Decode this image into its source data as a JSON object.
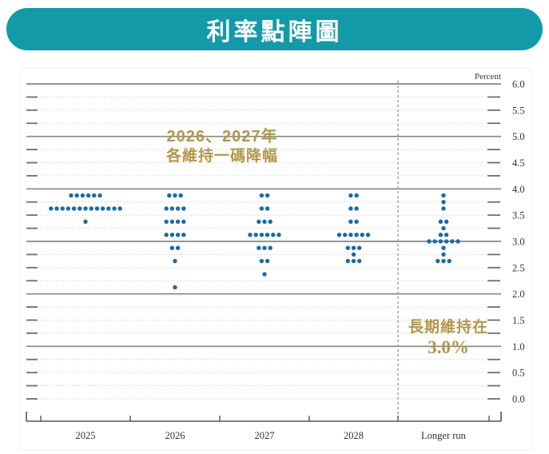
{
  "banner": {
    "title": "利率點陣圖"
  },
  "colors": {
    "banner_teal": "#129aa8",
    "dot_blue": "#1b6aa4",
    "annotation_gold": "#b2964a",
    "grid_solid": "#868686",
    "grid_dotted": "#c6c6c6",
    "grid_end_dash": "#6e6e6e",
    "axis": "#555555",
    "label_text": "#333333"
  },
  "chart_data": {
    "type": "scatter",
    "subtype": "fomc-dot-plot",
    "title": "利率點陣圖",
    "unit_label": "Percent",
    "categories": [
      "2025",
      "2026",
      "2027",
      "2028",
      "Longer run"
    ],
    "ylim": [
      0.0,
      6.0
    ],
    "y_major_grid_step": 1.0,
    "y_minor_grid_step": 0.25,
    "y_tick_labels": [
      "6.0",
      "5.5",
      "5.0",
      "4.5",
      "4.0",
      "3.5",
      "3.0",
      "2.5",
      "2.0",
      "1.5",
      "1.0",
      "0.5",
      "0.0"
    ],
    "grid": true,
    "legend": "none",
    "separator_before_category": "Longer run",
    "columns": [
      {
        "category": "2025",
        "dots": [
          {
            "rate": 3.875,
            "count": 6
          },
          {
            "rate": 3.625,
            "count": 13
          },
          {
            "rate": 3.375,
            "count": 1
          }
        ]
      },
      {
        "category": "2026",
        "dots": [
          {
            "rate": 3.875,
            "count": 3
          },
          {
            "rate": 3.625,
            "count": 4
          },
          {
            "rate": 3.375,
            "count": 4
          },
          {
            "rate": 3.125,
            "count": 4
          },
          {
            "rate": 2.875,
            "count": 2
          },
          {
            "rate": 2.625,
            "count": 1
          },
          {
            "rate": 2.125,
            "count": 1
          }
        ]
      },
      {
        "category": "2027",
        "dots": [
          {
            "rate": 3.875,
            "count": 2
          },
          {
            "rate": 3.625,
            "count": 2
          },
          {
            "rate": 3.375,
            "count": 3
          },
          {
            "rate": 3.125,
            "count": 6
          },
          {
            "rate": 2.875,
            "count": 3
          },
          {
            "rate": 2.625,
            "count": 2
          },
          {
            "rate": 2.375,
            "count": 1
          }
        ]
      },
      {
        "category": "2028",
        "dots": [
          {
            "rate": 3.875,
            "count": 2
          },
          {
            "rate": 3.625,
            "count": 2
          },
          {
            "rate": 3.375,
            "count": 2
          },
          {
            "rate": 3.125,
            "count": 6
          },
          {
            "rate": 2.875,
            "count": 3
          },
          {
            "rate": 2.75,
            "count": 1
          },
          {
            "rate": 2.625,
            "count": 3
          }
        ]
      },
      {
        "category": "Longer run",
        "dots": [
          {
            "rate": 3.875,
            "count": 1
          },
          {
            "rate": 3.75,
            "count": 1
          },
          {
            "rate": 3.625,
            "count": 1
          },
          {
            "rate": 3.375,
            "count": 2
          },
          {
            "rate": 3.25,
            "count": 1
          },
          {
            "rate": 3.125,
            "count": 2
          },
          {
            "rate": 3.0,
            "count": 6
          },
          {
            "rate": 2.875,
            "count": 1
          },
          {
            "rate": 2.75,
            "count": 1
          },
          {
            "rate": 2.625,
            "count": 3
          }
        ]
      }
    ],
    "annotations": [
      {
        "lines": [
          "2026、2027年",
          "各維持一碼降幅"
        ],
        "color": "#b2964a",
        "near": "2026-2027 columns"
      },
      {
        "lines": [
          "長期維持在",
          "3.0%"
        ],
        "color": "#b2964a",
        "near": "Longer run column"
      }
    ]
  }
}
